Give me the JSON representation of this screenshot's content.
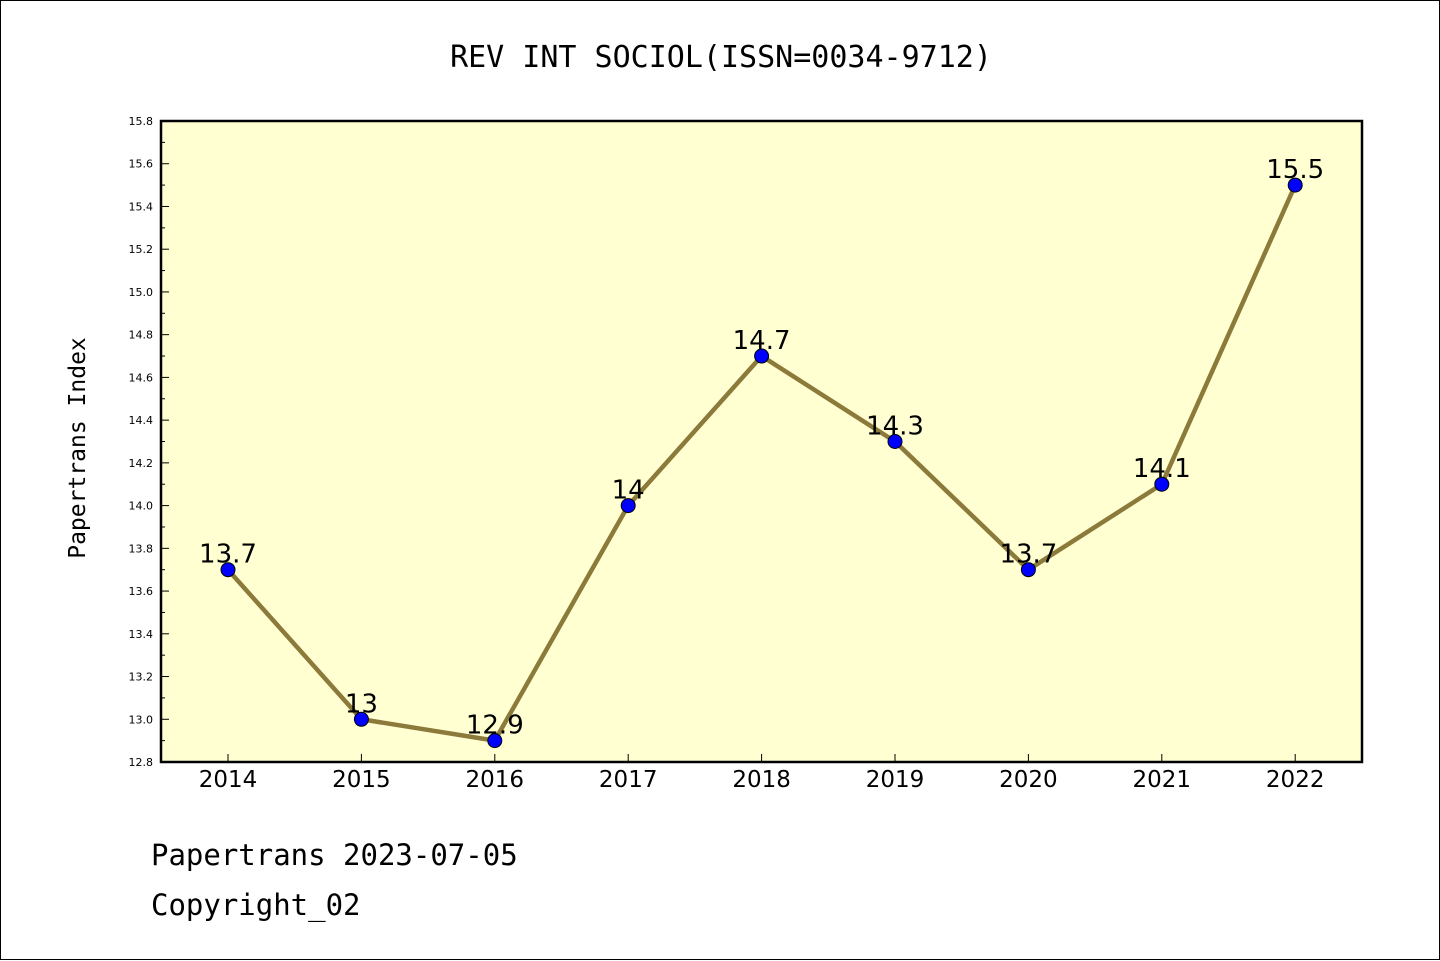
{
  "chart_data": {
    "type": "line",
    "title": "REV INT SOCIOL(ISSN=0034-9712)",
    "ylabel": "Papertrans Index",
    "xlabel": "",
    "categories": [
      "2014",
      "2015",
      "2016",
      "2017",
      "2018",
      "2019",
      "2020",
      "2021",
      "2022"
    ],
    "values": [
      13.7,
      13.0,
      12.9,
      14.0,
      14.7,
      14.3,
      13.7,
      14.1,
      15.5
    ],
    "data_labels": [
      "13.7",
      "13",
      "12.9",
      "14",
      "14.7",
      "14.3",
      "13.7",
      "14.1",
      "15.5"
    ],
    "ylim": [
      12.8,
      15.8
    ],
    "yticks": [
      "12.8",
      "13.0",
      "13.2",
      "13.4",
      "13.6",
      "13.8",
      "14.0",
      "14.2",
      "14.4",
      "14.6",
      "14.8",
      "15.0",
      "15.2",
      "15.4",
      "15.6",
      "15.8"
    ],
    "grid": false,
    "colors": {
      "plot_bg": "#ffffd2",
      "line": "#8b7a3a",
      "marker": "#0000ff"
    }
  },
  "footer": {
    "line1": "Papertrans 2023-07-05",
    "line2": "Copyright_02"
  }
}
